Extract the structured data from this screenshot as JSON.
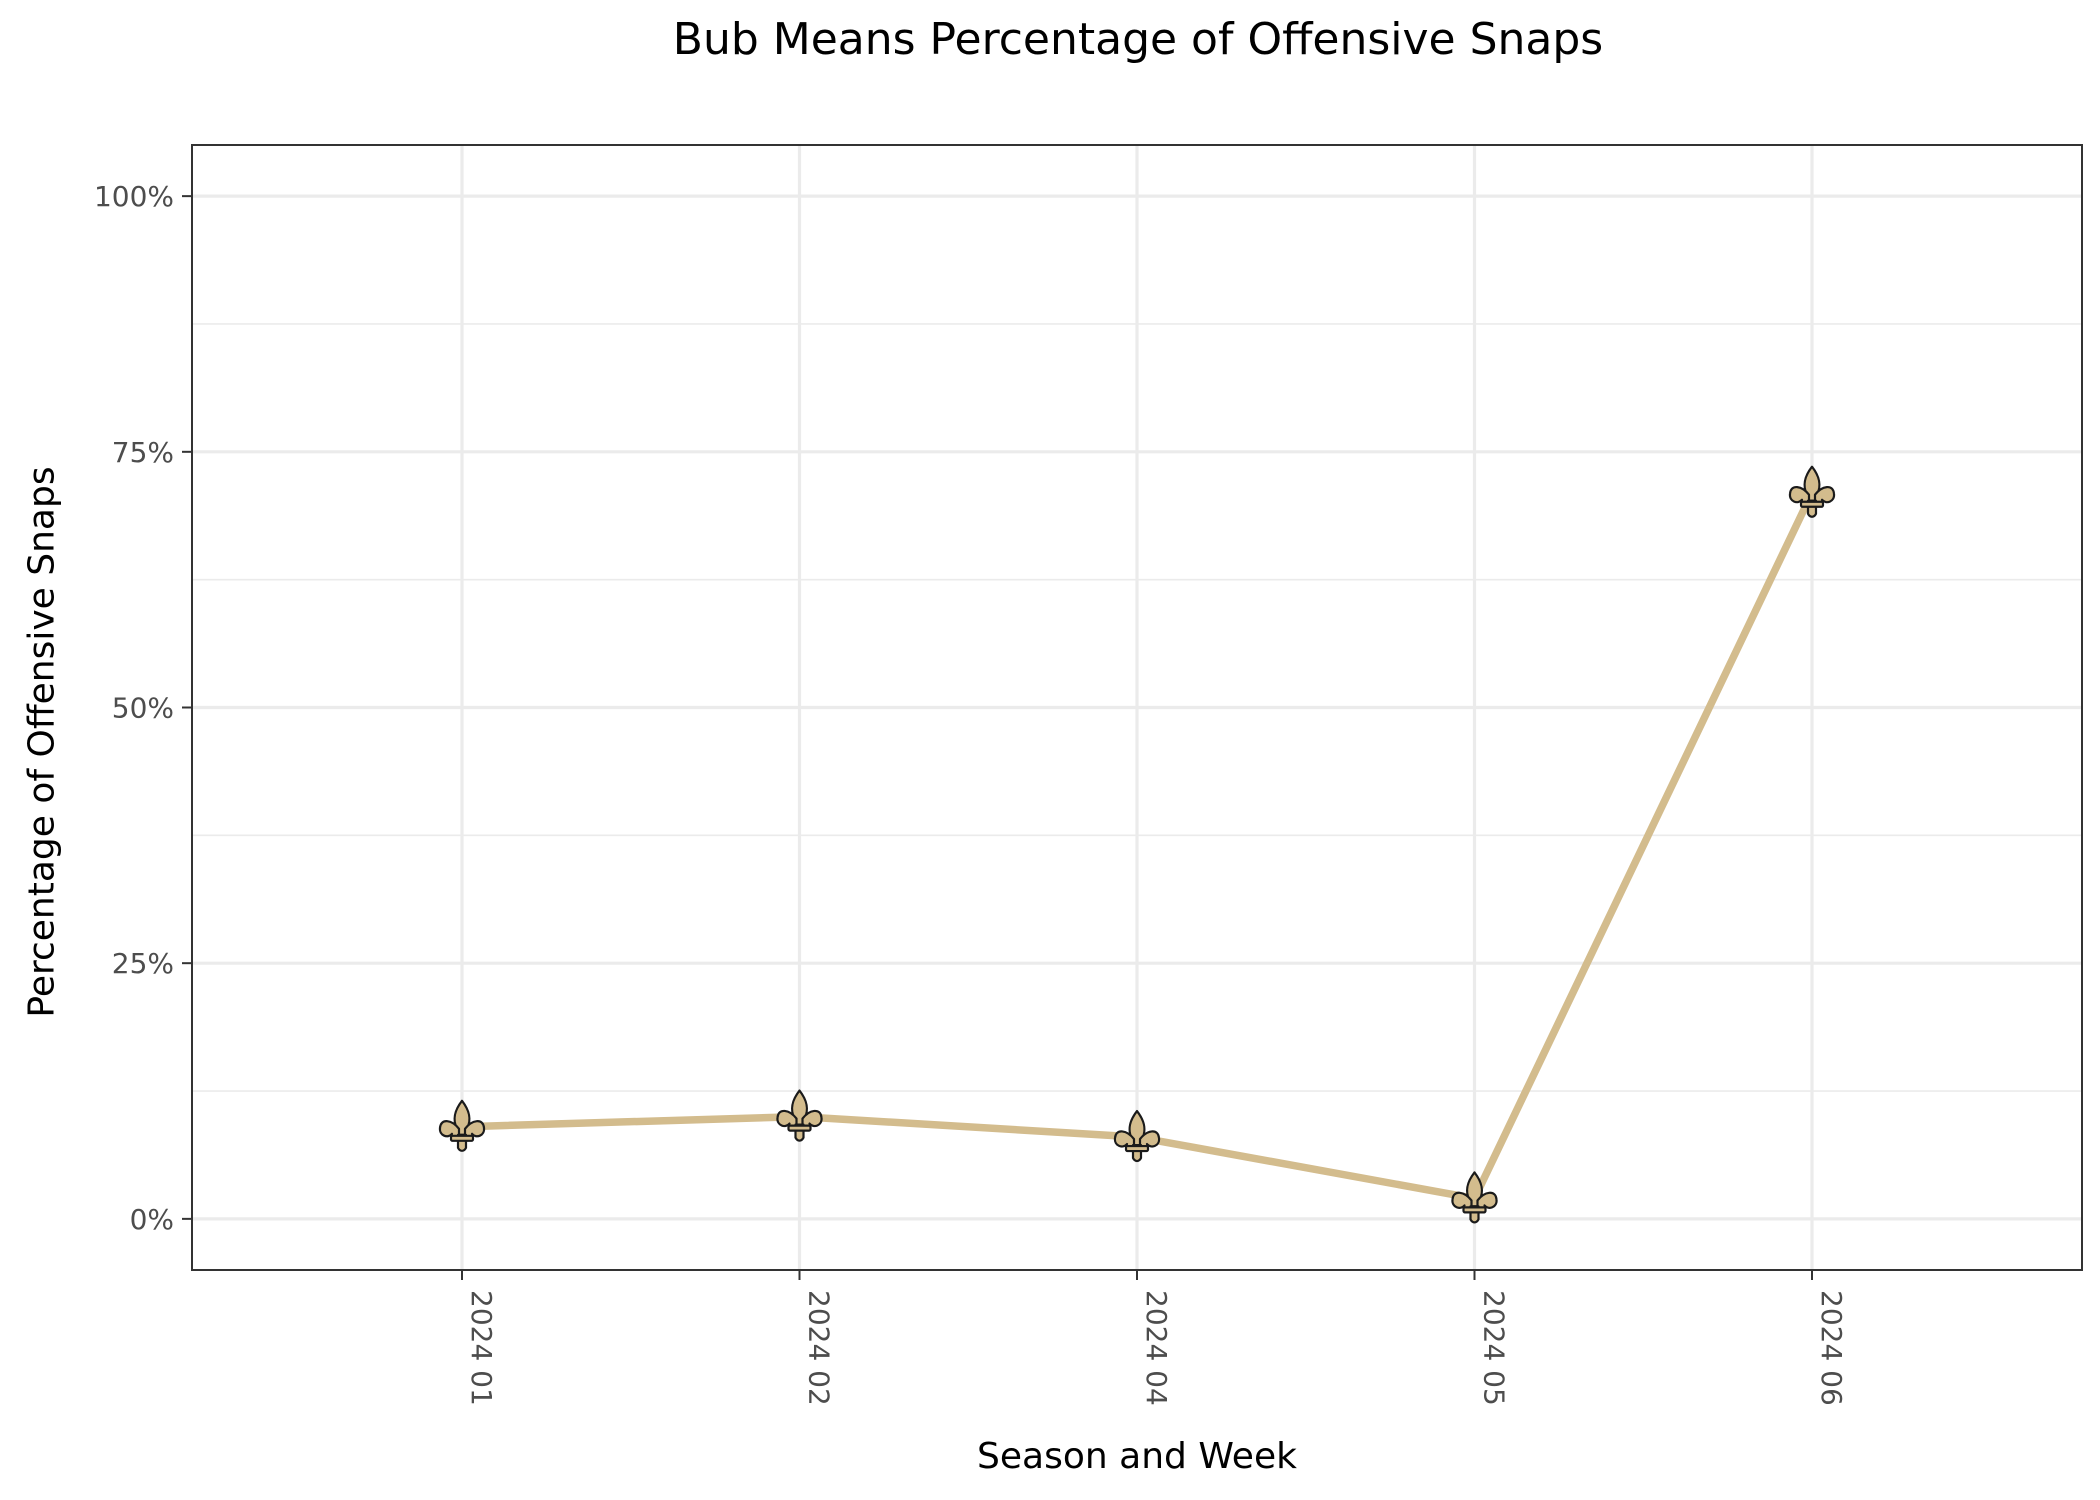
{
  "chart_data": {
    "type": "line",
    "title": "Bub Means Percentage of Offensive Snaps",
    "xlabel": "Season and Week",
    "ylabel": "Percentage of Offensive Snaps",
    "categories": [
      "2024 01",
      "2024 02",
      "2024 04",
      "2024 05",
      "2024 06"
    ],
    "values": [
      9,
      10,
      8,
      2,
      71
    ],
    "ylim": [
      -5,
      105
    ],
    "yticks": [
      0,
      25,
      50,
      75,
      100
    ],
    "ytick_labels": [
      "0%",
      "25%",
      "50%",
      "75%",
      "100%"
    ],
    "grid": true,
    "marker_icon": "fleur-de-lis-icon",
    "line_color": "#d3bc8d",
    "marker_color": "#d3bc8d"
  }
}
